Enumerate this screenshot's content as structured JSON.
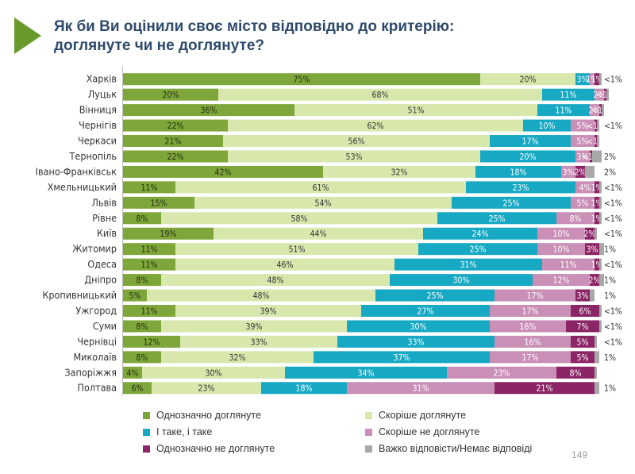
{
  "title": {
    "line1": "Як би Ви оцінили своє місто відповідно до критерію:",
    "line2": "доглянуте чи не доглянуте?"
  },
  "page_number": "149",
  "colors": [
    "#7fa63a",
    "#d8e8ad",
    "#17a9c4",
    "#c98fb6",
    "#8c2566",
    "#a8a8a8"
  ],
  "chart_data": {
    "type": "bar",
    "orientation": "horizontal",
    "stacked": true,
    "xlim": [
      0,
      100
    ],
    "series_names": [
      "Однозначно доглянуте",
      "Скоріше доглянуте",
      "І таке, і таке",
      "Скоріше не доглянуте",
      "Однозначно не доглянуте",
      "Важко відповісти/Немає відповіді"
    ],
    "rows": [
      {
        "city": "Харків",
        "values": [
          75,
          20,
          3,
          1,
          1,
          0.5
        ],
        "labels": [
          "75%",
          "20%",
          "3%",
          "1%",
          "1%",
          "<1%"
        ]
      },
      {
        "city": "Луцьк",
        "values": [
          20,
          68,
          11,
          2,
          0.5,
          0.5
        ],
        "labels": [
          "20%",
          "68%",
          "11%",
          "2%",
          "<1%",
          ""
        ]
      },
      {
        "city": "Вінниця",
        "values": [
          36,
          51,
          11,
          2,
          0.5,
          0.5
        ],
        "labels": [
          "36%",
          "51%",
          "11%",
          "2%",
          "<1%",
          ""
        ]
      },
      {
        "city": "Чернігів",
        "values": [
          22,
          62,
          10,
          5,
          0.5,
          0.5
        ],
        "labels": [
          "22%",
          "62%",
          "10%",
          "5%",
          "<1%",
          "<1%"
        ]
      },
      {
        "city": "Черкаси",
        "values": [
          21,
          56,
          17,
          5,
          0.5,
          0.5
        ],
        "labels": [
          "21%",
          "56%",
          "17%",
          "5%",
          "<1%",
          ""
        ]
      },
      {
        "city": "Тернопіль",
        "values": [
          22,
          53,
          20,
          3,
          0.5,
          2
        ],
        "labels": [
          "22%",
          "53%",
          "20%",
          "3%",
          "<1%",
          "2%"
        ]
      },
      {
        "city": "Івано-Франківськ",
        "values": [
          42,
          32,
          18,
          3,
          2,
          2
        ],
        "labels": [
          "42%",
          "32%",
          "18%",
          "3%",
          "2%",
          "2%"
        ]
      },
      {
        "city": "Хмельницький",
        "values": [
          11,
          61,
          23,
          4,
          1,
          0.5
        ],
        "labels": [
          "11%",
          "61%",
          "23%",
          "4%",
          "1%",
          "<1%"
        ]
      },
      {
        "city": "Львів",
        "values": [
          15,
          54,
          25,
          5,
          1,
          0.5
        ],
        "labels": [
          "15%",
          "54%",
          "25%",
          "5%",
          "1%",
          "<1%"
        ]
      },
      {
        "city": "Рівне",
        "values": [
          8,
          58,
          25,
          8,
          1,
          0.5
        ],
        "labels": [
          "8%",
          "58%",
          "25%",
          "8%",
          "1%",
          "<1%"
        ]
      },
      {
        "city": "Київ",
        "values": [
          19,
          44,
          24,
          10,
          2,
          0.5
        ],
        "labels": [
          "19%",
          "44%",
          "24%",
          "10%",
          "2%",
          "<1%"
        ]
      },
      {
        "city": "Житомир",
        "values": [
          11,
          51,
          25,
          10,
          3,
          1
        ],
        "labels": [
          "11%",
          "51%",
          "25%",
          "10%",
          "3%",
          "1%"
        ]
      },
      {
        "city": "Одеса",
        "values": [
          11,
          46,
          31,
          11,
          1,
          0.5
        ],
        "labels": [
          "11%",
          "46%",
          "31%",
          "11%",
          "1%",
          "<1%"
        ]
      },
      {
        "city": "Дніпро",
        "values": [
          8,
          48,
          30,
          12,
          2,
          1
        ],
        "labels": [
          "8%",
          "48%",
          "30%",
          "12%",
          "2%",
          "1%"
        ]
      },
      {
        "city": "Кропивницький",
        "values": [
          5,
          48,
          25,
          17,
          3,
          1
        ],
        "labels": [
          "5%",
          "48%",
          "25%",
          "17%",
          "3%",
          "1%"
        ]
      },
      {
        "city": "Ужгород",
        "values": [
          11,
          39,
          27,
          17,
          6,
          0.5
        ],
        "labels": [
          "11%",
          "39%",
          "27%",
          "17%",
          "6%",
          "<1%"
        ]
      },
      {
        "city": "Суми",
        "values": [
          8,
          39,
          30,
          16,
          7,
          0.5
        ],
        "labels": [
          "8%",
          "39%",
          "30%",
          "16%",
          "7%",
          "<1%"
        ]
      },
      {
        "city": "Чернівці",
        "values": [
          12,
          33,
          33,
          16,
          5,
          0.5
        ],
        "labels": [
          "12%",
          "33%",
          "33%",
          "16%",
          "5%",
          "<1%"
        ]
      },
      {
        "city": "Миколаїв",
        "values": [
          8,
          32,
          37,
          17,
          5,
          1
        ],
        "labels": [
          "8%",
          "32%",
          "37%",
          "17%",
          "5%",
          "1%"
        ]
      },
      {
        "city": "Запоріжжя",
        "values": [
          4,
          30,
          34,
          23,
          8,
          0.5
        ],
        "labels": [
          "4%",
          "30%",
          "34%",
          "23%",
          "8%",
          ""
        ]
      },
      {
        "city": "Полтава",
        "values": [
          6,
          23,
          18,
          31,
          21,
          1
        ],
        "labels": [
          "6%",
          "23%",
          "18%",
          "31%",
          "21%",
          "1%"
        ]
      }
    ],
    "legend": {
      "position": "bottom"
    }
  }
}
